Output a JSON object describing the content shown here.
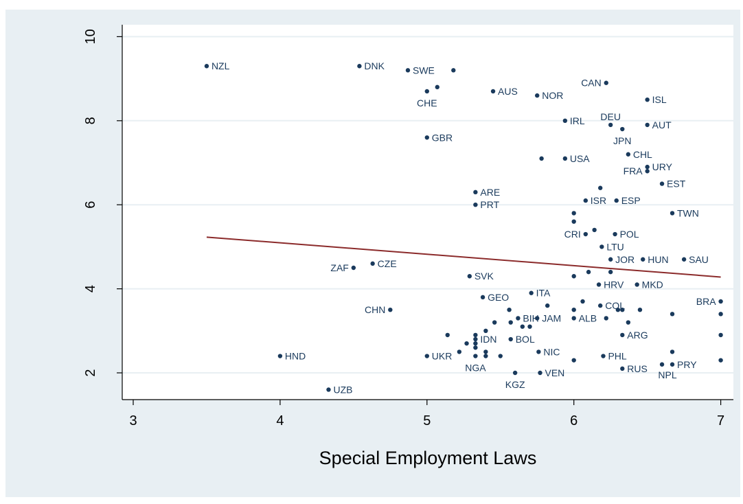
{
  "chart_data": {
    "type": "scatter",
    "title": "",
    "xlabel": "Special Employment Laws",
    "ylabel": "",
    "xlim": [
      3,
      7
    ],
    "ylim": [
      1.5,
      10.2
    ],
    "x_ticks": [
      3,
      4,
      5,
      6,
      7
    ],
    "y_ticks": [
      2,
      4,
      6,
      8,
      10
    ],
    "grid": "horizontal",
    "colors": {
      "outer_background": "#e8eff3",
      "plot_background": "#ffffff",
      "grid": "#e8eff3",
      "marker": "#1a3a5c",
      "fit_line": "#8b2a2a",
      "axis": "#000000"
    },
    "fit_line": {
      "x": [
        3.5,
        7.0
      ],
      "y": [
        5.23,
        4.28
      ]
    },
    "points": [
      {
        "x": 3.5,
        "y": 9.3,
        "label": "NZL",
        "pos": "r"
      },
      {
        "x": 4.54,
        "y": 9.3,
        "label": "DNK",
        "pos": "r"
      },
      {
        "x": 4.87,
        "y": 9.2,
        "label": "SWE",
        "pos": "r"
      },
      {
        "x": 5.18,
        "y": 9.2,
        "label": "",
        "pos": "r"
      },
      {
        "x": 5.07,
        "y": 8.8,
        "label": "",
        "pos": "r"
      },
      {
        "x": 5.0,
        "y": 8.7,
        "label": "CHE",
        "pos": "b"
      },
      {
        "x": 5.45,
        "y": 8.7,
        "label": "AUS",
        "pos": "r"
      },
      {
        "x": 5.75,
        "y": 8.6,
        "label": "NOR",
        "pos": "r"
      },
      {
        "x": 6.22,
        "y": 8.9,
        "label": "CAN",
        "pos": "l"
      },
      {
        "x": 6.5,
        "y": 8.5,
        "label": "ISL",
        "pos": "r"
      },
      {
        "x": 5.94,
        "y": 8.0,
        "label": "IRL",
        "pos": "r"
      },
      {
        "x": 6.25,
        "y": 7.9,
        "label": "DEU",
        "pos": "t"
      },
      {
        "x": 6.33,
        "y": 7.8,
        "label": "JPN",
        "pos": "b"
      },
      {
        "x": 6.5,
        "y": 7.9,
        "label": "AUT",
        "pos": "r"
      },
      {
        "x": 5.0,
        "y": 7.6,
        "label": "GBR",
        "pos": "r"
      },
      {
        "x": 5.78,
        "y": 7.1,
        "label": "",
        "pos": "r"
      },
      {
        "x": 5.94,
        "y": 7.1,
        "label": "USA",
        "pos": "r"
      },
      {
        "x": 6.37,
        "y": 7.2,
        "label": "CHL",
        "pos": "r"
      },
      {
        "x": 6.5,
        "y": 6.9,
        "label": "URY",
        "pos": "r"
      },
      {
        "x": 6.5,
        "y": 6.8,
        "label": "FRA",
        "pos": "l"
      },
      {
        "x": 6.6,
        "y": 6.5,
        "label": "EST",
        "pos": "r"
      },
      {
        "x": 6.18,
        "y": 6.4,
        "label": "",
        "pos": "r"
      },
      {
        "x": 5.33,
        "y": 6.3,
        "label": "ARE",
        "pos": "r"
      },
      {
        "x": 5.33,
        "y": 6.0,
        "label": "PRT",
        "pos": "r"
      },
      {
        "x": 6.08,
        "y": 6.1,
        "label": "ISR",
        "pos": "r"
      },
      {
        "x": 6.29,
        "y": 6.1,
        "label": "ESP",
        "pos": "r"
      },
      {
        "x": 6.0,
        "y": 5.8,
        "label": "",
        "pos": "r"
      },
      {
        "x": 6.0,
        "y": 5.6,
        "label": "",
        "pos": "r"
      },
      {
        "x": 6.67,
        "y": 5.8,
        "label": "TWN",
        "pos": "r"
      },
      {
        "x": 6.14,
        "y": 5.4,
        "label": "",
        "pos": "r"
      },
      {
        "x": 6.08,
        "y": 5.3,
        "label": "CRI",
        "pos": "l"
      },
      {
        "x": 6.28,
        "y": 5.3,
        "label": "POL",
        "pos": "r"
      },
      {
        "x": 6.19,
        "y": 5.0,
        "label": "LTU",
        "pos": "r"
      },
      {
        "x": 6.25,
        "y": 4.7,
        "label": "JOR",
        "pos": "r"
      },
      {
        "x": 6.47,
        "y": 4.7,
        "label": "HUN",
        "pos": "r"
      },
      {
        "x": 6.75,
        "y": 4.7,
        "label": "SAU",
        "pos": "r"
      },
      {
        "x": 4.5,
        "y": 4.5,
        "label": "ZAF",
        "pos": "l"
      },
      {
        "x": 4.63,
        "y": 4.6,
        "label": "CZE",
        "pos": "r"
      },
      {
        "x": 5.29,
        "y": 4.3,
        "label": "SVK",
        "pos": "r"
      },
      {
        "x": 6.0,
        "y": 4.3,
        "label": "",
        "pos": "r"
      },
      {
        "x": 6.1,
        "y": 4.4,
        "label": "",
        "pos": "r"
      },
      {
        "x": 6.25,
        "y": 4.4,
        "label": "",
        "pos": "r"
      },
      {
        "x": 6.17,
        "y": 4.1,
        "label": "HRV",
        "pos": "r"
      },
      {
        "x": 6.43,
        "y": 4.1,
        "label": "MKD",
        "pos": "r"
      },
      {
        "x": 5.71,
        "y": 3.9,
        "label": "ITA",
        "pos": "r"
      },
      {
        "x": 5.38,
        "y": 3.8,
        "label": "GEO",
        "pos": "r"
      },
      {
        "x": 4.75,
        "y": 3.5,
        "label": "CHN",
        "pos": "l"
      },
      {
        "x": 5.82,
        "y": 3.6,
        "label": "",
        "pos": "r"
      },
      {
        "x": 6.06,
        "y": 3.7,
        "label": "",
        "pos": "r"
      },
      {
        "x": 6.18,
        "y": 3.6,
        "label": "COL",
        "pos": "r"
      },
      {
        "x": 7.0,
        "y": 3.7,
        "label": "BRA",
        "pos": "l"
      },
      {
        "x": 5.56,
        "y": 3.5,
        "label": "",
        "pos": "r"
      },
      {
        "x": 6.0,
        "y": 3.5,
        "label": "",
        "pos": "r"
      },
      {
        "x": 6.3,
        "y": 3.5,
        "label": "",
        "pos": "r"
      },
      {
        "x": 6.33,
        "y": 3.5,
        "label": "",
        "pos": "r"
      },
      {
        "x": 6.45,
        "y": 3.5,
        "label": "",
        "pos": "r"
      },
      {
        "x": 5.62,
        "y": 3.3,
        "label": "BIH",
        "pos": "r"
      },
      {
        "x": 5.75,
        "y": 3.3,
        "label": "JAM",
        "pos": "r"
      },
      {
        "x": 6.0,
        "y": 3.3,
        "label": "ALB",
        "pos": "r"
      },
      {
        "x": 6.22,
        "y": 3.3,
        "label": "",
        "pos": "r"
      },
      {
        "x": 5.46,
        "y": 3.2,
        "label": "",
        "pos": "r"
      },
      {
        "x": 5.57,
        "y": 3.2,
        "label": "",
        "pos": "r"
      },
      {
        "x": 6.37,
        "y": 3.2,
        "label": "",
        "pos": "r"
      },
      {
        "x": 5.65,
        "y": 3.1,
        "label": "",
        "pos": "r"
      },
      {
        "x": 5.7,
        "y": 3.1,
        "label": "",
        "pos": "r"
      },
      {
        "x": 6.67,
        "y": 3.4,
        "label": "",
        "pos": "r"
      },
      {
        "x": 7.0,
        "y": 3.4,
        "label": "",
        "pos": "r"
      },
      {
        "x": 5.4,
        "y": 3.0,
        "label": "",
        "pos": "r"
      },
      {
        "x": 5.14,
        "y": 2.9,
        "label": "",
        "pos": "r"
      },
      {
        "x": 5.33,
        "y": 2.9,
        "label": "",
        "pos": "r"
      },
      {
        "x": 6.33,
        "y": 2.9,
        "label": "ARG",
        "pos": "r"
      },
      {
        "x": 7.0,
        "y": 2.9,
        "label": "",
        "pos": "r"
      },
      {
        "x": 5.33,
        "y": 2.8,
        "label": "IDN",
        "pos": "r"
      },
      {
        "x": 5.57,
        "y": 2.8,
        "label": "BOL",
        "pos": "r"
      },
      {
        "x": 5.27,
        "y": 2.7,
        "label": "",
        "pos": "r"
      },
      {
        "x": 5.33,
        "y": 2.7,
        "label": "",
        "pos": "r"
      },
      {
        "x": 5.33,
        "y": 2.6,
        "label": "",
        "pos": "r"
      },
      {
        "x": 5.22,
        "y": 2.5,
        "label": "",
        "pos": "r"
      },
      {
        "x": 5.4,
        "y": 2.5,
        "label": "",
        "pos": "r"
      },
      {
        "x": 5.76,
        "y": 2.5,
        "label": "NIC",
        "pos": "r"
      },
      {
        "x": 6.67,
        "y": 2.5,
        "label": "",
        "pos": "r"
      },
      {
        "x": 4.0,
        "y": 2.4,
        "label": "HND",
        "pos": "r"
      },
      {
        "x": 5.0,
        "y": 2.4,
        "label": "UKR",
        "pos": "r"
      },
      {
        "x": 5.33,
        "y": 2.4,
        "label": "NGA",
        "pos": "b"
      },
      {
        "x": 5.4,
        "y": 2.4,
        "label": "",
        "pos": "r"
      },
      {
        "x": 5.5,
        "y": 2.4,
        "label": "",
        "pos": "r"
      },
      {
        "x": 6.2,
        "y": 2.4,
        "label": "PHL",
        "pos": "r"
      },
      {
        "x": 6.0,
        "y": 2.3,
        "label": "",
        "pos": "r"
      },
      {
        "x": 7.0,
        "y": 2.3,
        "label": "",
        "pos": "r"
      },
      {
        "x": 6.6,
        "y": 2.2,
        "label": "NPL",
        "pos": "bl"
      },
      {
        "x": 6.67,
        "y": 2.2,
        "label": "PRY",
        "pos": "r"
      },
      {
        "x": 6.33,
        "y": 2.1,
        "label": "RUS",
        "pos": "r"
      },
      {
        "x": 5.6,
        "y": 2.0,
        "label": "KGZ",
        "pos": "b"
      },
      {
        "x": 5.77,
        "y": 2.0,
        "label": "VEN",
        "pos": "r"
      },
      {
        "x": 4.33,
        "y": 1.6,
        "label": "UZB",
        "pos": "r"
      }
    ]
  }
}
